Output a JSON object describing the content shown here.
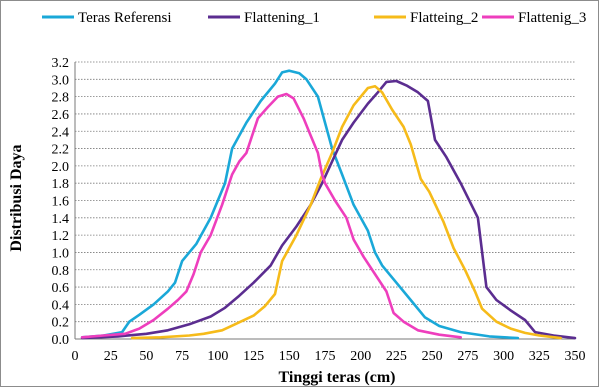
{
  "chart_data": {
    "type": "line",
    "title": "",
    "xlabel": "Tinggi teras (cm)",
    "ylabel": "Distribusi Daya",
    "xlim": [
      0,
      350
    ],
    "ylim": [
      0,
      3.2
    ],
    "x_ticks": [
      0,
      25,
      50,
      75,
      100,
      125,
      150,
      175,
      200,
      225,
      250,
      275,
      300,
      325,
      350
    ],
    "x_tick_labels": [
      "0",
      "25",
      "50",
      "75",
      "100",
      "125",
      "150",
      "175",
      "200",
      "225",
      "250",
      "275",
      "300",
      "325",
      "350"
    ],
    "y_ticks": [
      0,
      0.2,
      0.4,
      0.6,
      0.8,
      1.0,
      1.2,
      1.4,
      1.6,
      1.8,
      2.0,
      2.2,
      2.4,
      2.6,
      2.8,
      3.0,
      3.2
    ],
    "y_tick_labels": [
      "0.0",
      "0.2",
      "0.4",
      "0.6",
      "0.8",
      "1.0",
      "1.2",
      "1.4",
      "1.6",
      "1.8",
      "2.0",
      "2.2",
      "2.4",
      "2.6",
      "2.8",
      "3.0",
      "3.2"
    ],
    "grid": {
      "horizontal": true,
      "style": "dotted"
    },
    "legend_position": "top",
    "series": [
      {
        "name": "Teras Referensi",
        "color": "#1aa8d8",
        "points": [
          [
            5,
            0.02
          ],
          [
            20,
            0.04
          ],
          [
            33,
            0.08
          ],
          [
            38,
            0.2
          ],
          [
            45,
            0.28
          ],
          [
            55,
            0.4
          ],
          [
            65,
            0.55
          ],
          [
            70,
            0.65
          ],
          [
            75,
            0.9
          ],
          [
            85,
            1.1
          ],
          [
            95,
            1.4
          ],
          [
            105,
            1.8
          ],
          [
            110,
            2.2
          ],
          [
            120,
            2.5
          ],
          [
            130,
            2.75
          ],
          [
            140,
            2.95
          ],
          [
            145,
            3.08
          ],
          [
            150,
            3.1
          ],
          [
            157,
            3.07
          ],
          [
            162,
            3.0
          ],
          [
            170,
            2.8
          ],
          [
            175,
            2.5
          ],
          [
            180,
            2.2
          ],
          [
            187,
            1.9
          ],
          [
            195,
            1.55
          ],
          [
            205,
            1.25
          ],
          [
            210,
            1.0
          ],
          [
            215,
            0.85
          ],
          [
            225,
            0.65
          ],
          [
            235,
            0.45
          ],
          [
            245,
            0.25
          ],
          [
            255,
            0.15
          ],
          [
            270,
            0.08
          ],
          [
            290,
            0.03
          ],
          [
            310,
            0.01
          ]
        ]
      },
      {
        "name": "Flattening_1",
        "color": "#5b2d90",
        "points": [
          [
            5,
            0.01
          ],
          [
            30,
            0.03
          ],
          [
            50,
            0.06
          ],
          [
            65,
            0.1
          ],
          [
            80,
            0.17
          ],
          [
            95,
            0.26
          ],
          [
            105,
            0.36
          ],
          [
            115,
            0.5
          ],
          [
            125,
            0.65
          ],
          [
            137,
            0.85
          ],
          [
            145,
            1.08
          ],
          [
            155,
            1.3
          ],
          [
            165,
            1.55
          ],
          [
            173,
            1.8
          ],
          [
            180,
            2.05
          ],
          [
            187,
            2.3
          ],
          [
            195,
            2.5
          ],
          [
            205,
            2.72
          ],
          [
            212,
            2.85
          ],
          [
            218,
            2.97
          ],
          [
            225,
            2.98
          ],
          [
            232,
            2.93
          ],
          [
            240,
            2.85
          ],
          [
            247,
            2.75
          ],
          [
            252,
            2.3
          ],
          [
            260,
            2.1
          ],
          [
            270,
            1.8
          ],
          [
            282,
            1.4
          ],
          [
            288,
            0.6
          ],
          [
            295,
            0.45
          ],
          [
            305,
            0.33
          ],
          [
            315,
            0.22
          ],
          [
            322,
            0.08
          ],
          [
            335,
            0.04
          ],
          [
            350,
            0.01
          ]
        ]
      },
      {
        "name": "Flatteing_2",
        "color": "#f6bb1a",
        "points": [
          [
            40,
            0.01
          ],
          [
            60,
            0.02
          ],
          [
            80,
            0.04
          ],
          [
            90,
            0.06
          ],
          [
            103,
            0.1
          ],
          [
            112,
            0.17
          ],
          [
            125,
            0.27
          ],
          [
            133,
            0.38
          ],
          [
            140,
            0.52
          ],
          [
            145,
            0.9
          ],
          [
            155,
            1.2
          ],
          [
            165,
            1.55
          ],
          [
            172,
            1.85
          ],
          [
            180,
            2.15
          ],
          [
            187,
            2.45
          ],
          [
            195,
            2.7
          ],
          [
            205,
            2.9
          ],
          [
            210,
            2.92
          ],
          [
            215,
            2.85
          ],
          [
            222,
            2.65
          ],
          [
            230,
            2.45
          ],
          [
            235,
            2.25
          ],
          [
            242,
            1.85
          ],
          [
            248,
            1.7
          ],
          [
            258,
            1.35
          ],
          [
            265,
            1.05
          ],
          [
            273,
            0.8
          ],
          [
            280,
            0.55
          ],
          [
            285,
            0.35
          ],
          [
            295,
            0.2
          ],
          [
            305,
            0.12
          ],
          [
            315,
            0.07
          ],
          [
            325,
            0.04
          ],
          [
            340,
            0.01
          ]
        ]
      },
      {
        "name": "Flattenig_3",
        "color": "#ee3ebd",
        "points": [
          [
            5,
            0.02
          ],
          [
            20,
            0.04
          ],
          [
            35,
            0.06
          ],
          [
            45,
            0.12
          ],
          [
            55,
            0.22
          ],
          [
            65,
            0.35
          ],
          [
            72,
            0.45
          ],
          [
            78,
            0.55
          ],
          [
            83,
            0.75
          ],
          [
            88,
            1.0
          ],
          [
            95,
            1.2
          ],
          [
            103,
            1.55
          ],
          [
            110,
            1.9
          ],
          [
            115,
            2.05
          ],
          [
            120,
            2.15
          ],
          [
            128,
            2.55
          ],
          [
            135,
            2.68
          ],
          [
            142,
            2.8
          ],
          [
            148,
            2.83
          ],
          [
            153,
            2.78
          ],
          [
            160,
            2.55
          ],
          [
            165,
            2.35
          ],
          [
            170,
            2.15
          ],
          [
            173,
            1.9
          ],
          [
            175,
            1.8
          ],
          [
            182,
            1.6
          ],
          [
            190,
            1.4
          ],
          [
            195,
            1.15
          ],
          [
            202,
            0.95
          ],
          [
            210,
            0.75
          ],
          [
            218,
            0.55
          ],
          [
            223,
            0.3
          ],
          [
            230,
            0.2
          ],
          [
            240,
            0.1
          ],
          [
            255,
            0.05
          ],
          [
            270,
            0.02
          ]
        ]
      }
    ]
  }
}
